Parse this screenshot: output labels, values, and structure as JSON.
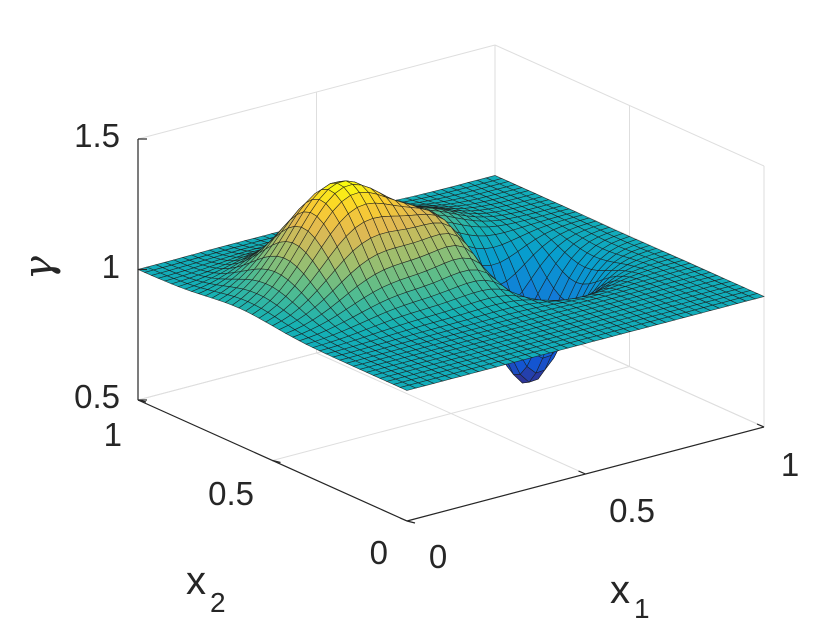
{
  "chart_data": {
    "type": "surface3d",
    "title": "",
    "xlabel": "x",
    "xlabel_sub": "1",
    "ylabel": "x",
    "ylabel_sub": "2",
    "zlabel": "γ",
    "xlim": [
      0,
      1
    ],
    "ylim": [
      0,
      1
    ],
    "zlim": [
      0.5,
      1.5
    ],
    "x_ticks": [
      "0",
      "0.5",
      "1"
    ],
    "y_ticks": [
      "0",
      "0.5",
      "1"
    ],
    "z_ticks": [
      "0.5",
      "1",
      "1.5"
    ],
    "grid": true,
    "colormap": "parula",
    "baseline": 1.0,
    "bumps": [
      {
        "x1": 0.28,
        "x2": 0.62,
        "amplitude": 0.4,
        "sigma": 0.12,
        "label": "peak"
      },
      {
        "x1": 0.62,
        "x2": 0.78,
        "amplitude": 0.1,
        "sigma": 0.1,
        "label": "peak"
      },
      {
        "x1": 0.52,
        "x2": 0.52,
        "amplitude": 0.22,
        "sigma": 0.1,
        "label": "peak"
      },
      {
        "x1": 0.7,
        "x2": 0.5,
        "amplitude": -0.5,
        "sigma": 0.09,
        "label": "trough"
      }
    ],
    "grid_resolution": 41
  }
}
